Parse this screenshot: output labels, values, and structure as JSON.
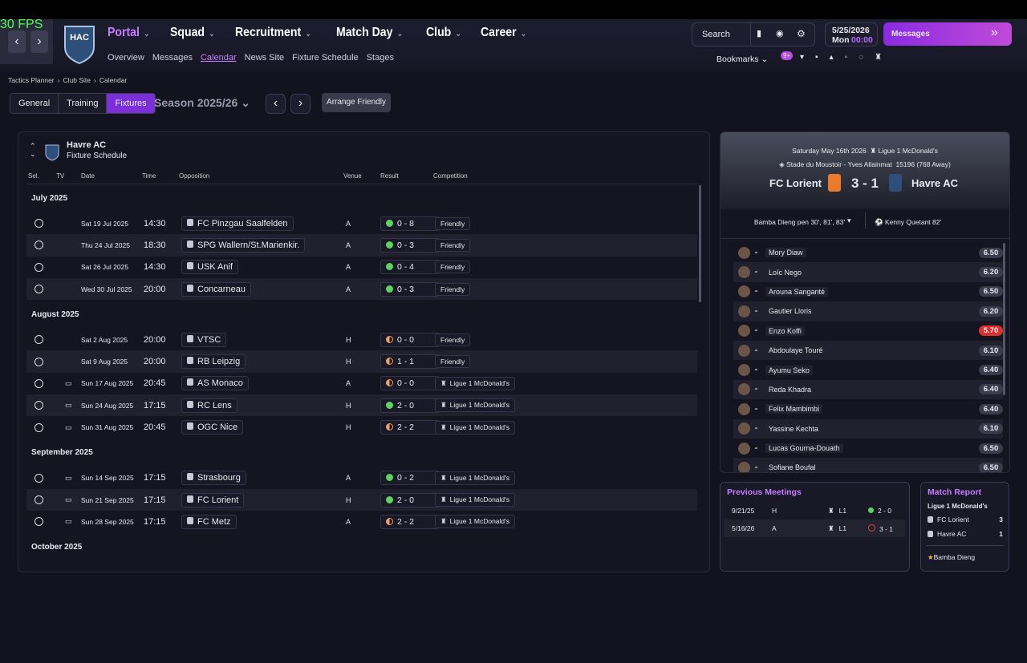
{
  "fps": "30 FPS",
  "nav": {
    "items": [
      "Portal",
      "Squad",
      "Recruitment",
      "Match Day",
      "Club",
      "Career"
    ],
    "sub": [
      "Overview",
      "Messages",
      "Calendar",
      "News Site",
      "Fixture Schedule",
      "Stages"
    ]
  },
  "toolbar": {
    "search": "Search",
    "date": "5/25/2026",
    "day": "Mon",
    "time": "00:00",
    "messages": "Messages",
    "bookmarks": "Bookmarks",
    "badge": "9+"
  },
  "breadcrumb": [
    "Tactics Planner",
    "Club Site",
    "Calendar"
  ],
  "tabs": [
    "General",
    "Training",
    "Fixtures"
  ],
  "season": "Season 2025/26",
  "arrange": "Arrange Friendly",
  "fixtures": {
    "team": "Havre AC",
    "subtitle": "Fixture Schedule",
    "columns": [
      "Sel.",
      "TV",
      "Date",
      "Time",
      "Opposition",
      "Venue",
      "Result",
      "Competition"
    ],
    "months": [
      {
        "name": "July 2025",
        "matches": [
          {
            "date": "Sat 19 Jul 2025",
            "time": "14:30",
            "opposition": "FC Pinzgau Saalfelden",
            "venue": "A",
            "result": "0 - 8",
            "competition": "Friendly"
          },
          {
            "date": "Thu 24 Jul 2025",
            "time": "18:30",
            "opposition": "SPG Wallern/St.Marienkir.",
            "venue": "A",
            "result": "0 - 3",
            "competition": "Friendly"
          },
          {
            "date": "Sat 26 Jul 2025",
            "time": "14:30",
            "opposition": "USK Anif",
            "venue": "A",
            "result": "0 - 4",
            "competition": "Friendly"
          },
          {
            "date": "Wed 30 Jul 2025",
            "time": "20:00",
            "opposition": "Concarneau",
            "venue": "A",
            "result": "0 - 3",
            "competition": "Friendly"
          }
        ]
      },
      {
        "name": "August 2025",
        "matches": [
          {
            "date": "Sat 2 Aug 2025",
            "time": "20:00",
            "opposition": "VTSC",
            "venue": "H",
            "result": "0 - 0",
            "competition": "Friendly"
          },
          {
            "date": "Sat 9 Aug 2025",
            "time": "20:00",
            "opposition": "RB Leipzig",
            "venue": "H",
            "result": "1 - 1",
            "competition": "Friendly"
          },
          {
            "tv": true,
            "date": "Sun 17 Aug 2025",
            "time": "20:45",
            "opposition": "AS Monaco",
            "venue": "A",
            "result": "0 - 0",
            "competition": "Ligue 1 McDonald's"
          },
          {
            "tv": true,
            "date": "Sun 24 Aug 2025",
            "time": "17:15",
            "opposition": "RC Lens",
            "venue": "H",
            "result": "2 - 0",
            "competition": "Ligue 1 McDonald's"
          },
          {
            "tv": true,
            "date": "Sun 31 Aug 2025",
            "time": "20:45",
            "opposition": "OGC Nice",
            "venue": "H",
            "result": "2 - 2",
            "competition": "Ligue 1 McDonald's"
          }
        ]
      },
      {
        "name": "September 2025",
        "matches": [
          {
            "tv": true,
            "date": "Sun 14 Sep 2025",
            "time": "17:15",
            "opposition": "Strasbourg",
            "venue": "A",
            "result": "0 - 2",
            "competition": "Ligue 1 McDonald's"
          },
          {
            "tv": true,
            "date": "Sun 21 Sep 2025",
            "time": "17:15",
            "opposition": "FC Lorient",
            "venue": "H",
            "result": "2 - 0",
            "competition": "Ligue 1 McDonald's"
          },
          {
            "tv": true,
            "date": "Sun 28 Sep 2025",
            "time": "17:15",
            "opposition": "FC Metz",
            "venue": "A",
            "result": "2 - 2",
            "competition": "Ligue 1 McDonald's"
          }
        ]
      },
      {
        "name": "October 2025",
        "matches": []
      }
    ]
  },
  "match": {
    "date": "Saturday May 16th 2026",
    "competition": "Ligue 1 McDonald's",
    "stadium": "Stade du Moustoir - Yves Allainmat",
    "attendance": "15196 (768 Away)",
    "home": "FC Lorient",
    "score": "3 - 1",
    "away": "Havre AC",
    "home_scorers": "Bamba Dieng pen 30', 81', 83'",
    "away_scorers": "Kenny Quetant 82'",
    "players": [
      {
        "name": "Mory Diaw",
        "rating": "6.50"
      },
      {
        "name": "Loïc Nego",
        "rating": "6.20"
      },
      {
        "name": "Arouna Sanganté",
        "rating": "6.50"
      },
      {
        "name": "Gautier Lloris",
        "rating": "6.20"
      },
      {
        "name": "Enzo Koffi",
        "rating": "5.70"
      },
      {
        "name": "Abdoulaye Touré",
        "rating": "6.10"
      },
      {
        "name": "Ayumu Seko",
        "rating": "6.40"
      },
      {
        "name": "Reda Khadra",
        "rating": "6.40"
      },
      {
        "name": "Felix Mambimbi",
        "rating": "6.40"
      },
      {
        "name": "Yassine Kechta",
        "rating": "6.10"
      },
      {
        "name": "Lucas Gourna-Douath",
        "rating": "6.50"
      },
      {
        "name": "Sofiane Boufal",
        "rating": "6.50"
      }
    ]
  },
  "previous": {
    "title": "Previous Meetings",
    "rows": [
      [
        "9/21/25",
        "H",
        "L1",
        "2 - 0"
      ],
      [
        "5/16/26",
        "A",
        "L1",
        "3 - 1"
      ]
    ]
  },
  "report": {
    "title": "Match Report",
    "competition": "Ligue 1 McDonald's",
    "rows": [
      [
        "FC Lorient",
        "3"
      ],
      [
        "Havre AC",
        "1"
      ]
    ],
    "motm": "Bamba Dieng"
  }
}
